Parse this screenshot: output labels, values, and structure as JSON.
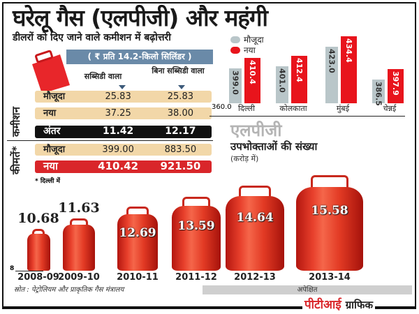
{
  "title": "घरेलू गैस (एलपीजी) और महंगी",
  "commission": {
    "subtitle": "डीलरों को दिए जाने वाले कमीशन में बढ़ोत्तरी",
    "unit": "( ₹ प्रति 14.2-किलो सिलिंडर )",
    "columns": [
      "सब्सिडी वाला",
      "बिना सब्सिडी वाला"
    ],
    "group_labels": {
      "commission": "कमीशन",
      "prices": "कीमतें*"
    },
    "rows": [
      {
        "label": "मौजूदा",
        "values": [
          "25.83",
          "25.83"
        ]
      },
      {
        "label": "नया",
        "values": [
          "37.25",
          "38.00"
        ]
      },
      {
        "label": "अंतर",
        "values": [
          "11.42",
          "12.17"
        ]
      },
      {
        "label": "मौजूदा",
        "values": [
          "399.00",
          "883.50"
        ]
      },
      {
        "label": "नया",
        "values": [
          "410.42",
          "921.50"
        ]
      }
    ],
    "footnote": "* दिल्ली में"
  },
  "chart_data": [
    {
      "type": "bar",
      "categories": [
        "दिल्ली",
        "कोलकाता",
        "मुंबई",
        "चेन्नई"
      ],
      "series": [
        {
          "name": "मौजूदा",
          "values": [
            399.0,
            401.0,
            423.0,
            386.5
          ],
          "color": "#b9c6c9"
        },
        {
          "name": "नया",
          "values": [
            410.4,
            412.4,
            434.4,
            397.9
          ],
          "color": "#e8141c"
        }
      ],
      "baseline_label": "360.0",
      "ylim": [
        360,
        434.4
      ],
      "legend": "top-left"
    },
    {
      "type": "bar",
      "title": "एलपीजी",
      "subtitle": "उपभोक्ताओं की संख्या",
      "ylabel": "(करोड़ में)",
      "categories": [
        "2008-09",
        "2009-10",
        "2010-11",
        "2011-12",
        "2012-13",
        "2013-14"
      ],
      "values": [
        10.68,
        11.63,
        12.69,
        13.59,
        14.64,
        15.58
      ],
      "baseline_label": "8",
      "expected_label": "अपेक्षित",
      "marks": "cylinders"
    }
  ],
  "source": "स्रोत : पेट्रोलियम और प्राकृतिक गैस मंत्रालय",
  "credit": {
    "brand": "पीटीआई",
    "suffix": "ग्राफिक"
  },
  "colors": {
    "red": "#d9262a",
    "tan": "#f2d7a8",
    "blue": "#6a8aa8",
    "gray": "#b9c6c9"
  }
}
